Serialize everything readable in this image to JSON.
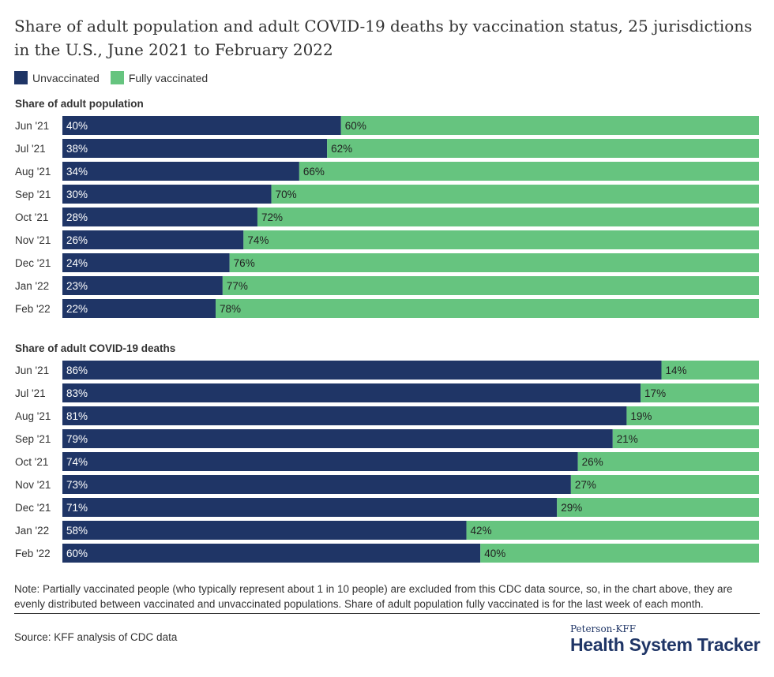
{
  "title": "Share of adult population and adult COVID-19 deaths by vaccination status, 25 jurisdictions in the U.S., June 2021 to February 2022",
  "colors": {
    "unvaccinated": "#1f3566",
    "fully_vaccinated": "#66c47f"
  },
  "chart_data": [
    {
      "type": "bar",
      "stacked": true,
      "orientation": "horizontal",
      "title": "Share of adult population",
      "categories": [
        "Jun '21",
        "Jul '21",
        "Aug '21",
        "Sep '21",
        "Oct '21",
        "Nov '21",
        "Dec '21",
        "Jan '22",
        "Feb '22"
      ],
      "series": [
        {
          "name": "Unvaccinated",
          "values": [
            40,
            38,
            34,
            30,
            28,
            26,
            24,
            23,
            22
          ]
        },
        {
          "name": "Fully vaccinated",
          "values": [
            60,
            62,
            66,
            70,
            72,
            74,
            76,
            77,
            78
          ]
        }
      ],
      "xlim": [
        0,
        100
      ],
      "legend": "top-left"
    },
    {
      "type": "bar",
      "stacked": true,
      "orientation": "horizontal",
      "title": "Share of adult COVID-19 deaths",
      "categories": [
        "Jun '21",
        "Jul '21",
        "Aug '21",
        "Sep '21",
        "Oct '21",
        "Nov '21",
        "Dec '21",
        "Jan '22",
        "Feb '22"
      ],
      "series": [
        {
          "name": "Unvaccinated",
          "values": [
            86,
            83,
            81,
            79,
            74,
            73,
            71,
            58,
            60
          ]
        },
        {
          "name": "Fully vaccinated",
          "values": [
            14,
            17,
            19,
            21,
            26,
            27,
            29,
            42,
            40
          ]
        }
      ],
      "xlim": [
        0,
        100
      ]
    }
  ],
  "legend": [
    "Unvaccinated",
    "Fully vaccinated"
  ],
  "note": "Note: Partially vaccinated people (who typically represent about 1 in 10 people) are excluded from this CDC data source, so, in the chart above, they are evenly distributed between vaccinated and unvaccinated populations. Share of adult population fully vaccinated is for the last week of each month.",
  "source": "Source: KFF analysis of CDC data",
  "logo": {
    "small": "Peterson-KFF",
    "big": "Health System Tracker"
  }
}
